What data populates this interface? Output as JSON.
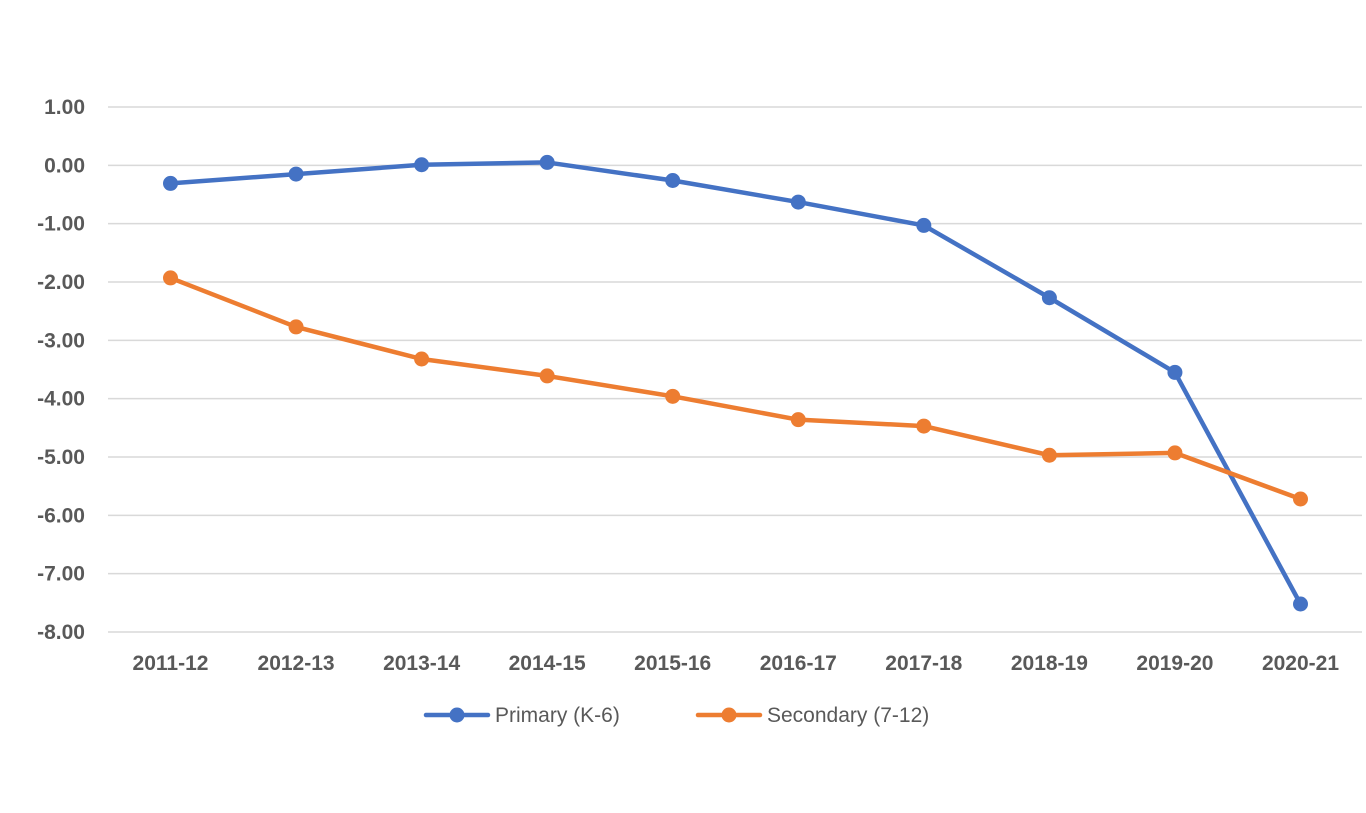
{
  "chart_data": {
    "type": "line",
    "title": "",
    "xlabel": "",
    "ylabel": "",
    "categories": [
      "2011-12",
      "2012-13",
      "2013-14",
      "2014-15",
      "2015-16",
      "2016-17",
      "2017-18",
      "2018-19",
      "2019-20",
      "2020-21"
    ],
    "y_tick_labels": [
      "1.00",
      "0.00",
      "-1.00",
      "-2.00",
      "-3.00",
      "-4.00",
      "-5.00",
      "-6.00",
      "-7.00",
      "-8.00"
    ],
    "ylim": [
      -8,
      1
    ],
    "grid": true,
    "legend_position": "bottom",
    "series": [
      {
        "name": "Primary (K-6)",
        "color": "#4472C4",
        "values": [
          -0.31,
          -0.15,
          0.01,
          0.05,
          -0.26,
          -0.63,
          -1.03,
          -2.27,
          -3.55,
          -7.52
        ]
      },
      {
        "name": "Secondary (7-12)",
        "color": "#ED7D31",
        "values": [
          -1.93,
          -2.77,
          -3.32,
          -3.61,
          -3.96,
          -4.36,
          -4.47,
          -4.97,
          -4.93,
          -5.72
        ]
      }
    ]
  }
}
